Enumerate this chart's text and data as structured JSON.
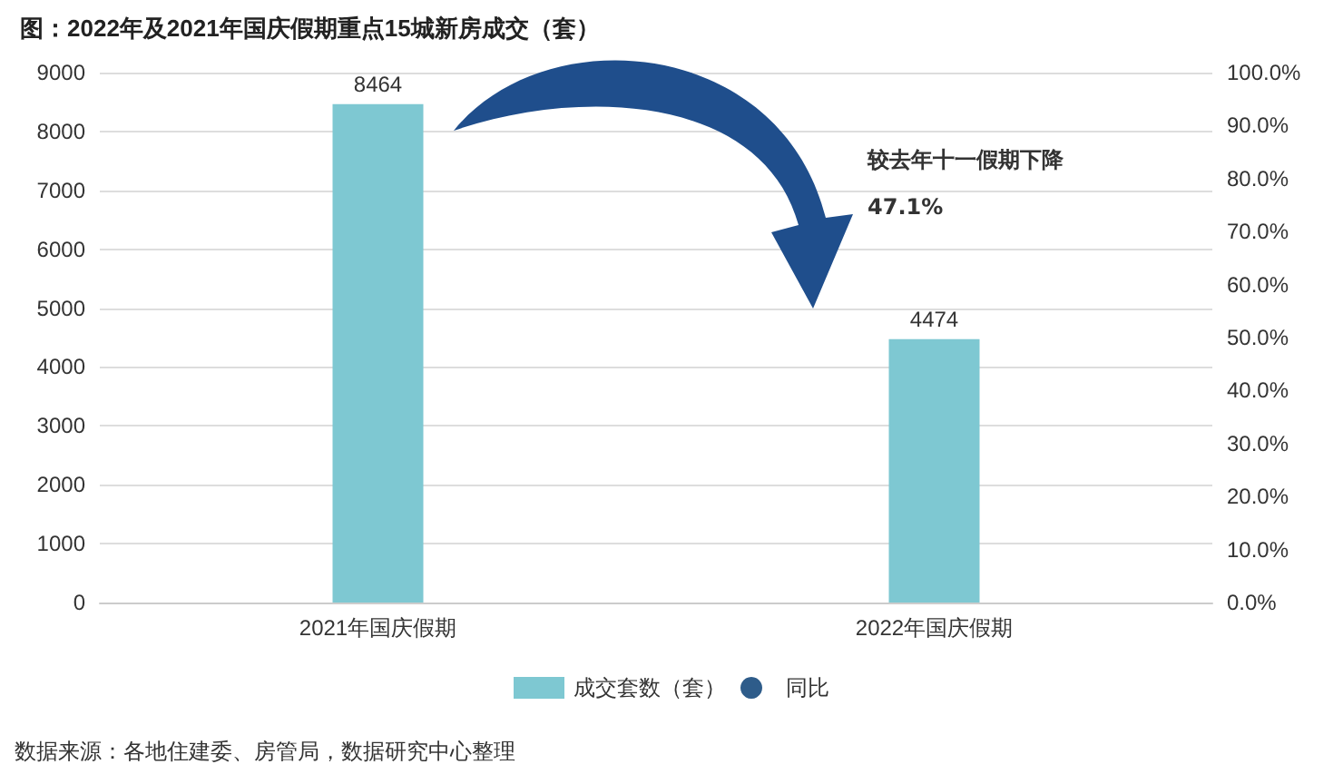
{
  "chart_data": {
    "type": "bar",
    "title": "图：2022年及2021年国庆假期重点15城新房成交（套）",
    "categories": [
      "2021年国庆假期",
      "2022年国庆假期"
    ],
    "series": [
      {
        "name": "成交套数（套）",
        "color": "#7ec8d2",
        "values": [
          8464,
          4474
        ]
      },
      {
        "name": "同比",
        "type": "line",
        "axis": "y2",
        "color": "#2e5c8a",
        "values": [
          null,
          null
        ]
      }
    ],
    "data_labels": true,
    "ylim": [
      0,
      9000
    ],
    "yticks": [
      0,
      1000,
      2000,
      3000,
      4000,
      5000,
      6000,
      7000,
      8000,
      9000
    ],
    "y2lim": [
      0,
      100
    ],
    "y2ticks": [
      {
        "value": 0,
        "label": "0.0%"
      },
      {
        "value": 10,
        "label": "10.0%"
      },
      {
        "value": 20,
        "label": "20.0%"
      },
      {
        "value": 30,
        "label": "30.0%"
      },
      {
        "value": 40,
        "label": "40.0%"
      },
      {
        "value": 50,
        "label": "50.0%"
      },
      {
        "value": 60,
        "label": "60.0%"
      },
      {
        "value": 70,
        "label": "70.0%"
      },
      {
        "value": 80,
        "label": "80.0%"
      },
      {
        "value": 90,
        "label": "90.0%"
      },
      {
        "value": 100,
        "label": "100.0%"
      }
    ],
    "grid": "y",
    "legend": "bottom",
    "marker": "circle",
    "annotations": [
      "较去年十一假期下降\n47.1%",
      "数据来源：各地住建委、房管局，数据研究中心整理"
    ]
  }
}
